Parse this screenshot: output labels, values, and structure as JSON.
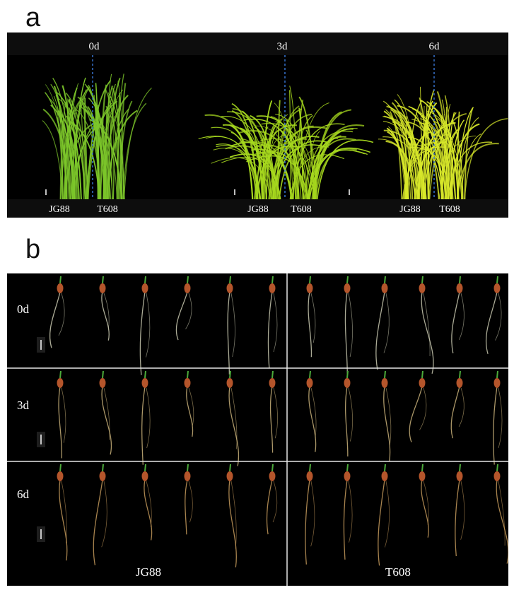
{
  "panel_a": {
    "letter": "a",
    "timepoints": [
      {
        "day": "0d",
        "left": "JG88",
        "right": "T608"
      },
      {
        "day": "3d",
        "left": "JG88",
        "right": "T608"
      },
      {
        "day": "6d",
        "left": "JG88",
        "right": "T608"
      }
    ]
  },
  "panel_b": {
    "letter": "b",
    "rows": [
      "0d",
      "3d",
      "6d"
    ],
    "columns": [
      "JG88",
      "T608"
    ],
    "seedlings_per_cell": 6
  },
  "colors": {
    "background": "#000000",
    "leaf_0d": "#7cc62a",
    "leaf_3d": "#a6d81e",
    "leaf_6d": "#d8e82a",
    "divider_line": "#3a78d8",
    "seed": "#b4552b",
    "root": "#c8c8a8",
    "grid_line": "#ffffff"
  }
}
